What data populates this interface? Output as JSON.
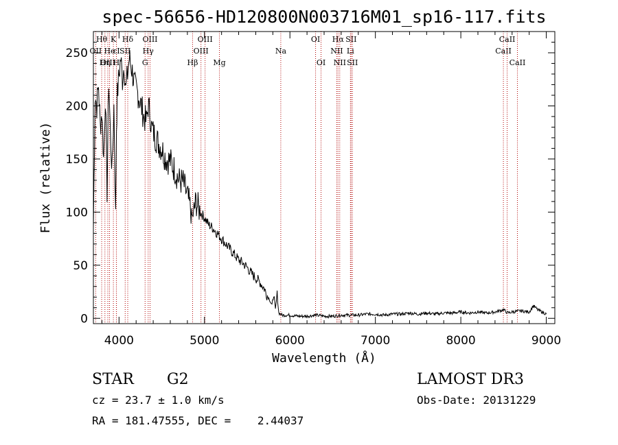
{
  "chart_data": {
    "type": "line",
    "title": "spec-56656-HD120800N003716M01_sp16-117.fits",
    "xlabel": "Wavelength (Å)",
    "ylabel": "Flux (relative)",
    "xlim": [
      3700,
      9100
    ],
    "ylim": [
      -5,
      270
    ],
    "xticks": [
      4000,
      5000,
      6000,
      7000,
      8000,
      9000
    ],
    "yticks": [
      0,
      50,
      100,
      150,
      200,
      250
    ],
    "grid": false,
    "series": [
      {
        "name": "spectrum",
        "x": [
          3700,
          3720,
          3740,
          3760,
          3780,
          3800,
          3820,
          3840,
          3860,
          3880,
          3900,
          3920,
          3940,
          3960,
          3970,
          3980,
          4000,
          4020,
          4040,
          4060,
          4080,
          4100,
          4120,
          4150,
          4180,
          4200,
          4230,
          4260,
          4290,
          4320,
          4340,
          4360,
          4380,
          4400,
          4430,
          4460,
          4500,
          4550,
          4600,
          4650,
          4700,
          4750,
          4800,
          4861,
          4900,
          4950,
          5000,
          5050,
          5100,
          5150,
          5200,
          5250,
          5300,
          5350,
          5400,
          5450,
          5500,
          5550,
          5600,
          5650,
          5700,
          5730,
          5760,
          5790,
          5810,
          5830,
          5850,
          5870,
          5890,
          5910,
          5950,
          6000,
          6100,
          6200,
          6300,
          6400,
          6500,
          6600,
          6700,
          6800,
          6900,
          7000,
          7100,
          7200,
          7300,
          7400,
          7500,
          7600,
          7700,
          7800,
          7900,
          8000,
          8100,
          8200,
          8300,
          8400,
          8500,
          8550,
          8600,
          8700,
          8800,
          8850,
          8900,
          8950,
          9000
        ],
        "y": [
          85,
          210,
          200,
          220,
          180,
          195,
          150,
          210,
          120,
          225,
          170,
          140,
          200,
          100,
          180,
          210,
          230,
          245,
          225,
          240,
          215,
          230,
          245,
          235,
          220,
          215,
          210,
          200,
          190,
          185,
          200,
          195,
          180,
          175,
          170,
          165,
          160,
          150,
          148,
          140,
          130,
          128,
          115,
          95,
          110,
          100,
          95,
          88,
          85,
          80,
          75,
          70,
          65,
          60,
          55,
          52,
          48,
          42,
          38,
          34,
          28,
          22,
          18,
          12,
          25,
          8,
          22,
          5,
          4,
          3,
          3,
          3,
          2,
          2,
          3,
          2,
          2,
          3,
          3,
          3,
          4,
          4,
          3,
          4,
          4,
          5,
          4,
          5,
          4,
          5,
          5,
          6,
          5,
          6,
          5,
          6,
          8,
          5,
          6,
          7,
          6,
          12,
          8,
          6,
          4
        ]
      }
    ],
    "lines": [
      {
        "label": "Hθ",
        "x": 3797,
        "row": 1
      },
      {
        "label": "OII",
        "x": 3727,
        "row": 2
      },
      {
        "label": "OIII",
        "x": 3869,
        "row": 3
      },
      {
        "label": "Hη",
        "x": 3835,
        "row": 3
      },
      {
        "label": "He",
        "x": 3889,
        "row": 2
      },
      {
        "label": "K",
        "x": 3934,
        "row": 1
      },
      {
        "label": "H",
        "x": 3969,
        "row": 3
      },
      {
        "label": "εI",
        "x": 3970,
        "row": 2
      },
      {
        "label": "Hδ",
        "x": 4102,
        "row": 1
      },
      {
        "label": "SII",
        "x": 4072,
        "row": 2
      },
      {
        "label": "OIII",
        "x": 4363,
        "row": 1
      },
      {
        "label": "Hγ",
        "x": 4341,
        "row": 2
      },
      {
        "label": "G",
        "x": 4305,
        "row": 3
      },
      {
        "label": "Hβ",
        "x": 4861,
        "row": 3
      },
      {
        "label": "OIII",
        "x": 4959,
        "row": 2
      },
      {
        "label": "OIII",
        "x": 5007,
        "row": 1
      },
      {
        "label": "Mg",
        "x": 5175,
        "row": 3
      },
      {
        "label": "Na",
        "x": 5893,
        "row": 2
      },
      {
        "label": "OI",
        "x": 6300,
        "row": 1
      },
      {
        "label": "OI",
        "x": 6364,
        "row": 3
      },
      {
        "label": "Hα",
        "x": 6563,
        "row": 1
      },
      {
        "label": "NII",
        "x": 6548,
        "row": 2
      },
      {
        "label": "NII",
        "x": 6583,
        "row": 3
      },
      {
        "label": "SII",
        "x": 6716,
        "row": 1
      },
      {
        "label": "Li",
        "x": 6708,
        "row": 2
      },
      {
        "label": "SII",
        "x": 6731,
        "row": 3
      },
      {
        "label": "CaII",
        "x": 8498,
        "row": 2
      },
      {
        "label": "CaII",
        "x": 8542,
        "row": 1
      },
      {
        "label": "CaII",
        "x": 8662,
        "row": 3
      }
    ]
  },
  "info": {
    "object_type": "STAR",
    "subclass": "G2",
    "survey": "LAMOST DR3",
    "cz": "cz = 23.7 ± 1.0 km/s",
    "obs_date": "Obs-Date: 20131229",
    "radec": "RA = 181.47555, DEC =    2.44037"
  }
}
